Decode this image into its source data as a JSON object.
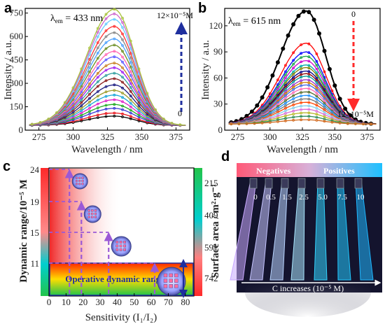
{
  "panels": {
    "a": "a",
    "b": "b",
    "c": "c",
    "d": "d"
  },
  "chart_data": [
    {
      "type": "line",
      "panel": "a",
      "annotation_lambda": "λem = 433 nm",
      "annotation_lambda_main": "λ",
      "annotation_lambda_sub": "em",
      "annotation_lambda_rest": " = 433 nm",
      "arrow_top_label": "12×10⁻⁵M",
      "arrow_bottom_label": "0",
      "arrow_direction": "up",
      "xlabel": "Wavelength / nm",
      "ylabel": "Intensity / a.u.",
      "xlim": [
        265,
        385
      ],
      "ylim": [
        0,
        780
      ],
      "xticks": [
        "275",
        "300",
        "325",
        "350",
        "375"
      ],
      "yticks": [
        "0",
        "150",
        "300",
        "450",
        "600",
        "750"
      ],
      "peak_x": 330,
      "baseline": 30,
      "series_peaks": [
        90,
        110,
        140,
        165,
        195,
        225,
        255,
        290,
        330,
        365,
        400,
        430,
        470,
        505,
        545,
        585,
        625,
        665,
        710,
        745,
        775
      ],
      "series_colors": [
        "#000000",
        "#e8141b",
        "#3b3bd6",
        "#22aa22",
        "#e020c8",
        "#1aa6d8",
        "#9b9b2a",
        "#1a1a80",
        "#8a1a1a",
        "#2d9d9d",
        "#a020f0",
        "#c87d20",
        "#5c5cff",
        "#ff66b2",
        "#6b8e23",
        "#4aa0ff",
        "#888888",
        "#ff3333",
        "#66ccff",
        "#cc66cc",
        "#a8c23b"
      ]
    },
    {
      "type": "line",
      "panel": "b",
      "annotation_lambda_main": "λ",
      "annotation_lambda_sub": "em",
      "annotation_lambda_rest": " = 615 nm",
      "arrow_top_label": "0",
      "arrow_bottom_label": "12×10⁻⁵M",
      "arrow_direction": "down",
      "xlabel": "Wavelength / nm",
      "ylabel": "Intensity / a.u.",
      "xlim": [
        265,
        385
      ],
      "ylim": [
        0,
        140
      ],
      "xticks": [
        "275",
        "300",
        "325",
        "350",
        "375"
      ],
      "yticks": [
        "0",
        "30",
        "60",
        "90",
        "120"
      ],
      "peak_x": 328,
      "baseline": 7,
      "series_peaks": [
        137,
        100,
        90,
        85,
        80,
        75,
        72,
        68,
        65,
        62,
        58,
        55,
        52,
        48,
        44,
        40,
        36,
        32,
        28,
        24,
        20,
        16,
        12
      ],
      "series_colors": [
        "#000000",
        "#ff0000",
        "#0000ff",
        "#1aa64a",
        "#cc00cc",
        "#00aaaa",
        "#808000",
        "#00008b",
        "#8b0000",
        "#009999",
        "#9932cc",
        "#cc7a00",
        "#4169e1",
        "#ff69b4",
        "#556b2f",
        "#1e90ff",
        "#777777",
        "#ff4500",
        "#87ceeb",
        "#da70d6",
        "#b8b82a",
        "#2e8b57",
        "#d2691e"
      ]
    },
    {
      "type": "bar",
      "panel": "c",
      "xlabel": "Sensitivity (I₁/I₂)",
      "ylabel_left": "Dynamic range/10⁻⁵ M",
      "ylabel_right": "Surface area / m²·g⁻¹",
      "xlim": [
        0,
        85
      ],
      "xticks": [
        "0",
        "10",
        "20",
        "30",
        "40",
        "50",
        "60",
        "70",
        "80"
      ],
      "left_ticks": [
        "11",
        "15",
        "19",
        "24"
      ],
      "right_ticks": [
        "215",
        "409",
        "591",
        "742"
      ],
      "region_label": "Operative dynamic range",
      "points": [
        {
          "sensitivity": 12,
          "dynamic_range": 24,
          "surface_area": 215
        },
        {
          "sensitivity": 19,
          "dynamic_range": 19,
          "surface_area": 409
        },
        {
          "sensitivity": 35,
          "dynamic_range": 15,
          "surface_area": 591
        },
        {
          "sensitivity": 62,
          "dynamic_range": 11,
          "surface_area": 742
        }
      ]
    }
  ],
  "panel_d": {
    "label_negatives": "Negatives",
    "label_positives": "Positives",
    "concentrations": [
      "0",
      "0.5",
      "1.5",
      "2.5",
      "5.0",
      "7.5",
      "10"
    ],
    "tube_colors": [
      "#c9a9ff",
      "#c4c4ff",
      "#b8d4ff",
      "#a9e6ff",
      "#33d4ff",
      "#22c8ff",
      "#1fb7ff"
    ],
    "bottom_label": "C increases (10⁻⁵ M)"
  }
}
